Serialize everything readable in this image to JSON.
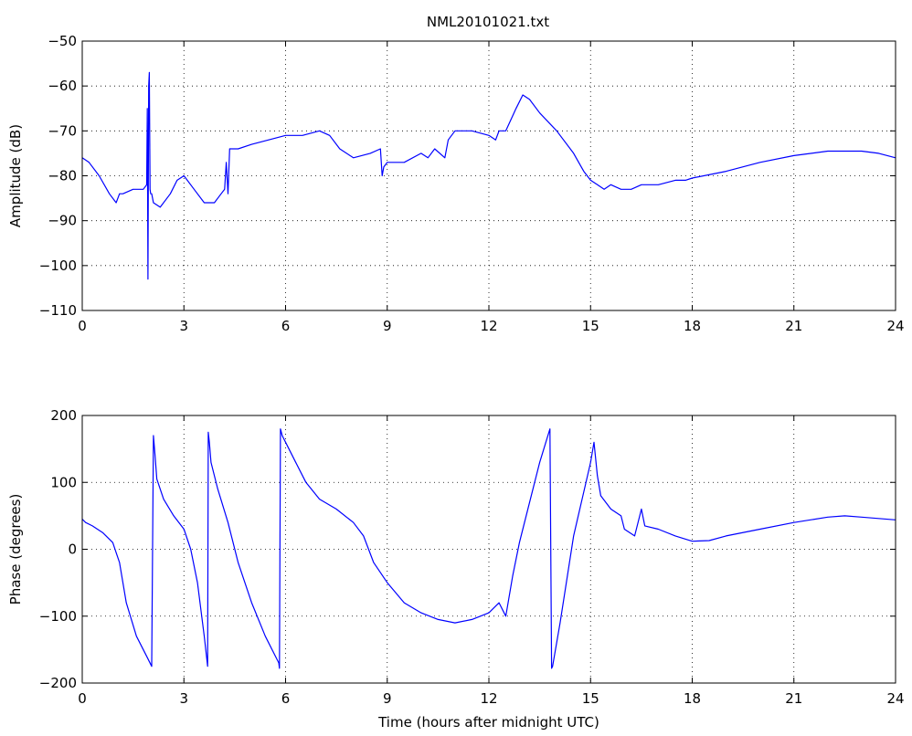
{
  "chart_data": [
    {
      "type": "line",
      "title": "NML20101021.txt",
      "xlabel": "",
      "ylabel": "Amplitude (dB)",
      "xlim": [
        0,
        24
      ],
      "ylim": [
        -110,
        -50
      ],
      "xticks": [
        0,
        3,
        6,
        9,
        12,
        15,
        18,
        21,
        24
      ],
      "yticks": [
        -110,
        -100,
        -90,
        -80,
        -70,
        -60,
        -50
      ],
      "grid": true,
      "line_color": "#0000ff",
      "series": [
        {
          "x": [
            0,
            0.2,
            0.5,
            0.8,
            1.0,
            1.1,
            1.2,
            1.5,
            1.8,
            1.9,
            1.92,
            1.94,
            1.96,
            1.98,
            2.0,
            2.02,
            2.05,
            2.1,
            2.3,
            2.6,
            2.8,
            3.0,
            3.3,
            3.6,
            3.9,
            4.1,
            4.2,
            4.25,
            4.3,
            4.35,
            4.6,
            5.0,
            5.5,
            6.0,
            6.5,
            7.0,
            7.3,
            7.6,
            8.0,
            8.5,
            8.8,
            8.85,
            8.9,
            9.0,
            9.5,
            10.0,
            10.2,
            10.4,
            10.7,
            10.8,
            11.0,
            11.5,
            12.0,
            12.2,
            12.3,
            12.5,
            12.8,
            13.0,
            13.2,
            13.5,
            14.0,
            14.5,
            14.8,
            15.0,
            15.2,
            15.4,
            15.6,
            15.9,
            16.2,
            16.5,
            17.0,
            17.5,
            17.8,
            18.0,
            19.0,
            20.0,
            21.0,
            22.0,
            23.0,
            23.5,
            24.0
          ],
          "y": [
            -76,
            -77,
            -80,
            -84,
            -86,
            -84,
            -84,
            -83,
            -83,
            -82,
            -65,
            -103,
            -60,
            -57,
            -83,
            -84,
            -84,
            -86,
            -87,
            -84,
            -81,
            -80,
            -83,
            -86,
            -86,
            -84,
            -83,
            -77,
            -84,
            -74,
            -74,
            -73,
            -72,
            -71,
            -71,
            -70,
            -71,
            -74,
            -76,
            -75,
            -74,
            -80,
            -78,
            -77,
            -77,
            -75,
            -76,
            -74,
            -76,
            -72,
            -70,
            -70,
            -71,
            -72,
            -70,
            -70,
            -65,
            -62,
            -63,
            -66,
            -70,
            -75,
            -79,
            -81,
            -82,
            -83,
            -82,
            -83,
            -83,
            -82,
            -82,
            -81,
            -81,
            -80.5,
            -79,
            -77,
            -75.5,
            -74.5,
            -74.5,
            -75,
            -76
          ]
        }
      ]
    },
    {
      "type": "line",
      "title": "",
      "xlabel": "Time (hours after midnight UTC)",
      "ylabel": "Phase (degrees)",
      "xlim": [
        0,
        24
      ],
      "ylim": [
        -200,
        200
      ],
      "xticks": [
        0,
        3,
        6,
        9,
        12,
        15,
        18,
        21,
        24
      ],
      "yticks": [
        -200,
        -100,
        0,
        100,
        200
      ],
      "grid": true,
      "line_color": "#0000ff",
      "series": [
        {
          "x": [
            0,
            0.1,
            0.3,
            0.6,
            0.9,
            1.1,
            1.3,
            1.6,
            1.9,
            2.05,
            2.1,
            2.15,
            2.2,
            2.4,
            2.7,
            3.0,
            3.2,
            3.4,
            3.6,
            3.7,
            3.72,
            3.75,
            3.8,
            4.0,
            4.3,
            4.6,
            5.0,
            5.4,
            5.8,
            5.82,
            5.85,
            5.9,
            6.0,
            6.3,
            6.6,
            7.0,
            7.5,
            8.0,
            8.3,
            8.6,
            9.0,
            9.5,
            10.0,
            10.5,
            11.0,
            11.5,
            12.0,
            12.3,
            12.5,
            12.7,
            12.9,
            13.2,
            13.5,
            13.8,
            13.85,
            13.88,
            14.1,
            14.5,
            15.0,
            15.1,
            15.2,
            15.3,
            15.6,
            15.9,
            16.0,
            16.3,
            16.5,
            16.6,
            17.0,
            17.5,
            18.0,
            18.5,
            19.0,
            20.0,
            21.0,
            22.0,
            22.5,
            23.0,
            24.0
          ],
          "y": [
            45,
            40,
            35,
            25,
            10,
            -20,
            -80,
            -130,
            -160,
            -175,
            170,
            140,
            105,
            75,
            50,
            30,
            0,
            -50,
            -130,
            -175,
            175,
            160,
            130,
            90,
            40,
            -20,
            -80,
            -130,
            -170,
            -178,
            180,
            170,
            160,
            130,
            100,
            75,
            60,
            40,
            20,
            -20,
            -50,
            -80,
            -95,
            -105,
            -110,
            -105,
            -95,
            -80,
            -100,
            -40,
            10,
            70,
            130,
            180,
            -178,
            -175,
            -110,
            20,
            130,
            160,
            110,
            80,
            60,
            50,
            30,
            20,
            60,
            35,
            30,
            20,
            12,
            13,
            20,
            30,
            40,
            48,
            50,
            48,
            44
          ]
        }
      ]
    }
  ]
}
